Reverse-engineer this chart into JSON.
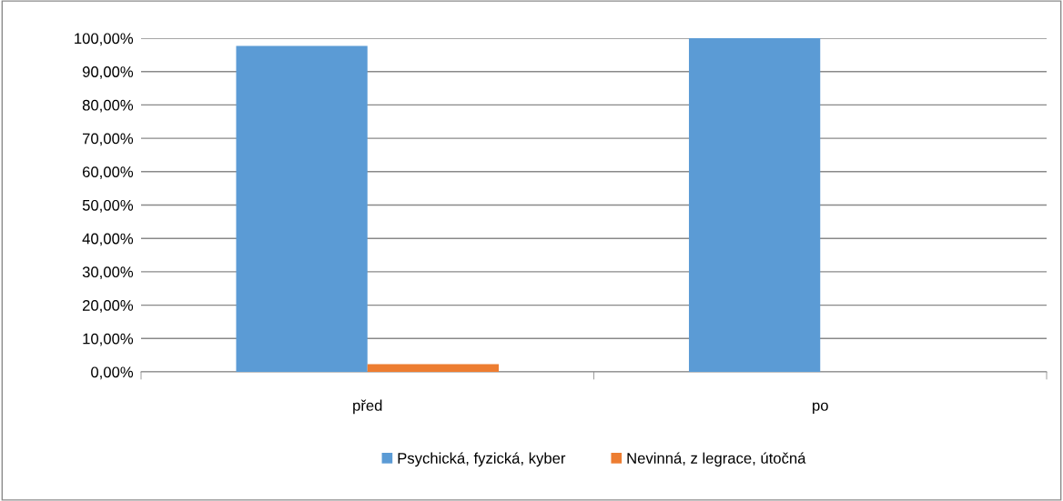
{
  "chart_data": {
    "type": "bar",
    "categories": [
      "před",
      "po"
    ],
    "series": [
      {
        "name": "Psychická, fyzická, kyber",
        "color": "#5b9bd5",
        "values": [
          97.7,
          100
        ]
      },
      {
        "name": "Nevinná, z legrace, útočná",
        "color": "#ed7d31",
        "values": [
          2.3,
          0
        ]
      }
    ],
    "ylim": [
      0,
      100
    ],
    "yticks": [
      {
        "value": 0,
        "label": "0,00%"
      },
      {
        "value": 10,
        "label": "10,00%"
      },
      {
        "value": 20,
        "label": "20,00%"
      },
      {
        "value": 30,
        "label": "30,00%"
      },
      {
        "value": 40,
        "label": "40,00%"
      },
      {
        "value": 50,
        "label": "50,00%"
      },
      {
        "value": 60,
        "label": "60,00%"
      },
      {
        "value": 70,
        "label": "70,00%"
      },
      {
        "value": 80,
        "label": "80,00%"
      },
      {
        "value": 90,
        "label": "90,00%"
      },
      {
        "value": 100,
        "label": "100,00%"
      }
    ],
    "grid": "y",
    "legend": "bottom"
  }
}
